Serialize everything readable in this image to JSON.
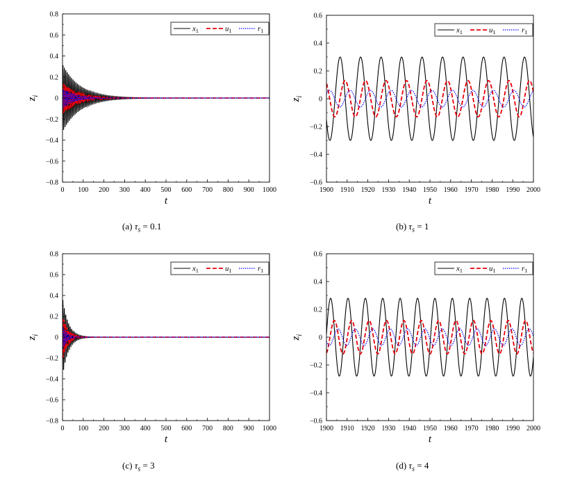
{
  "chart_data": [
    {
      "type": "line",
      "caption": {
        "label": "(a)",
        "symbol": "τ",
        "sub": "s",
        "eq": "=",
        "value": "0.1"
      },
      "xlabel": "t",
      "ylabel": "z",
      "ylabel_sub": "i",
      "xlim": [
        0,
        1000
      ],
      "ylim": [
        -0.8,
        0.8
      ],
      "xticks": [
        0,
        100,
        200,
        300,
        400,
        500,
        600,
        700,
        800,
        900,
        1000
      ],
      "xtick_labels": [
        "0",
        "100",
        "200",
        "300",
        "400",
        "500",
        "600",
        "700",
        "800",
        "900",
        "1000"
      ],
      "yticks": [
        -0.8,
        -0.6,
        -0.4,
        -0.2,
        0,
        0.2,
        0.4,
        0.6,
        0.8
      ],
      "ytick_labels": [
        "−0.8",
        "−0.6",
        "−0.4",
        "−0.2",
        "0",
        "0.2",
        "0.4",
        "0.6",
        "0.8"
      ],
      "legend_position": "top-right",
      "series": [
        {
          "name": "x",
          "sub": "1",
          "color": "#000000",
          "style": "solid",
          "model": "decay",
          "amp": 0.32,
          "period": 7,
          "tau": 85,
          "phase": 0
        },
        {
          "name": "u",
          "sub": "1",
          "color": "#e8000b",
          "style": "dashed",
          "model": "decay",
          "amp": 0.15,
          "period": 7,
          "tau": 70,
          "phase": 2.2
        },
        {
          "name": "r",
          "sub": "1",
          "color": "#0000ff",
          "style": "dotted",
          "model": "decay",
          "amp": 0.09,
          "period": 7,
          "tau": 60,
          "phase": 3.6
        }
      ]
    },
    {
      "type": "line",
      "caption": {
        "label": "(b)",
        "symbol": "τ",
        "sub": "s",
        "eq": "=",
        "value": "1"
      },
      "xlabel": "t",
      "ylabel": "z",
      "ylabel_sub": "i",
      "xlim": [
        1900,
        2000
      ],
      "ylim": [
        -0.6,
        0.6
      ],
      "xticks": [
        1900,
        1910,
        1920,
        1930,
        1940,
        1950,
        1960,
        1970,
        1980,
        1990,
        2000
      ],
      "xtick_labels": [
        "1900",
        "1910",
        "1920",
        "1930",
        "1940",
        "1950",
        "1960",
        "1970",
        "1980",
        "1990",
        "2000"
      ],
      "yticks": [
        -0.6,
        -0.4,
        -0.2,
        0,
        0.2,
        0.4,
        0.6
      ],
      "ytick_labels": [
        "−0.6",
        "−0.4",
        "−0.2",
        "0",
        "0.2",
        "0.4",
        "0.6"
      ],
      "legend_position": "top-right",
      "series": [
        {
          "name": "x",
          "sub": "1",
          "color": "#000000",
          "style": "solid",
          "model": "sine",
          "amp": 0.3,
          "period": 9.9,
          "t0": 1906.6
        },
        {
          "name": "u",
          "sub": "1",
          "color": "#e8000b",
          "style": "dashed",
          "model": "sine",
          "amp": 0.13,
          "period": 9.9,
          "t0": 1909.0
        },
        {
          "name": "r",
          "sub": "1",
          "color": "#0000ff",
          "style": "dotted",
          "model": "sine",
          "amp": 0.06,
          "period": 9.9,
          "t0": 1911.4
        }
      ]
    },
    {
      "type": "line",
      "caption": {
        "label": "(c)",
        "symbol": "τ",
        "sub": "s",
        "eq": "=",
        "value": "3"
      },
      "xlabel": "t",
      "ylabel": "z",
      "ylabel_sub": "i",
      "xlim": [
        0,
        1000
      ],
      "ylim": [
        -0.8,
        0.8
      ],
      "xticks": [
        0,
        100,
        200,
        300,
        400,
        500,
        600,
        700,
        800,
        900,
        1000
      ],
      "xtick_labels": [
        "0",
        "100",
        "200",
        "300",
        "400",
        "500",
        "600",
        "700",
        "800",
        "900",
        "1000"
      ],
      "yticks": [
        -0.8,
        -0.6,
        -0.4,
        -0.2,
        0,
        0.2,
        0.4,
        0.6,
        0.8
      ],
      "ytick_labels": [
        "−0.8",
        "−0.6",
        "−0.4",
        "−0.2",
        "0",
        "0.2",
        "0.4",
        "0.6",
        "0.8"
      ],
      "legend_position": "top-right",
      "series": [
        {
          "name": "x",
          "sub": "1",
          "color": "#000000",
          "style": "solid",
          "model": "decay",
          "amp": 0.38,
          "period": 7,
          "tau": 28,
          "phase": 0
        },
        {
          "name": "u",
          "sub": "1",
          "color": "#e8000b",
          "style": "dashed",
          "model": "decay",
          "amp": 0.22,
          "period": 7,
          "tau": 24,
          "phase": 2.2
        },
        {
          "name": "r",
          "sub": "1",
          "color": "#0000ff",
          "style": "dotted",
          "model": "decay",
          "amp": 0.12,
          "period": 7,
          "tau": 20,
          "phase": 3.6
        }
      ]
    },
    {
      "type": "line",
      "caption": {
        "label": "(d)",
        "symbol": "τ",
        "sub": "s",
        "eq": "=",
        "value": "4"
      },
      "xlabel": "t",
      "ylabel": "z",
      "ylabel_sub": "i",
      "xlim": [
        1900,
        2000
      ],
      "ylim": [
        -0.6,
        0.6
      ],
      "xticks": [
        1900,
        1910,
        1920,
        1930,
        1940,
        1950,
        1960,
        1970,
        1980,
        1990,
        2000
      ],
      "xtick_labels": [
        "1900",
        "1910",
        "1920",
        "1930",
        "1940",
        "1950",
        "1960",
        "1970",
        "1980",
        "1990",
        "2000"
      ],
      "yticks": [
        -0.6,
        -0.4,
        -0.2,
        0,
        0.2,
        0.4,
        0.6
      ],
      "ytick_labels": [
        "−0.6",
        "−0.4",
        "−0.2",
        "0",
        "0.2",
        "0.4",
        "0.6"
      ],
      "legend_position": "top-right",
      "series": [
        {
          "name": "x",
          "sub": "1",
          "color": "#000000",
          "style": "solid",
          "model": "sine",
          "amp": 0.28,
          "period": 8.4,
          "t0": 1902.0
        },
        {
          "name": "u",
          "sub": "1",
          "color": "#e8000b",
          "style": "dashed",
          "model": "sine",
          "amp": 0.12,
          "period": 8.4,
          "t0": 1903.8
        },
        {
          "name": "r",
          "sub": "1",
          "color": "#0000ff",
          "style": "dotted",
          "model": "sine",
          "amp": 0.06,
          "period": 8.4,
          "t0": 1905.6
        }
      ]
    }
  ]
}
